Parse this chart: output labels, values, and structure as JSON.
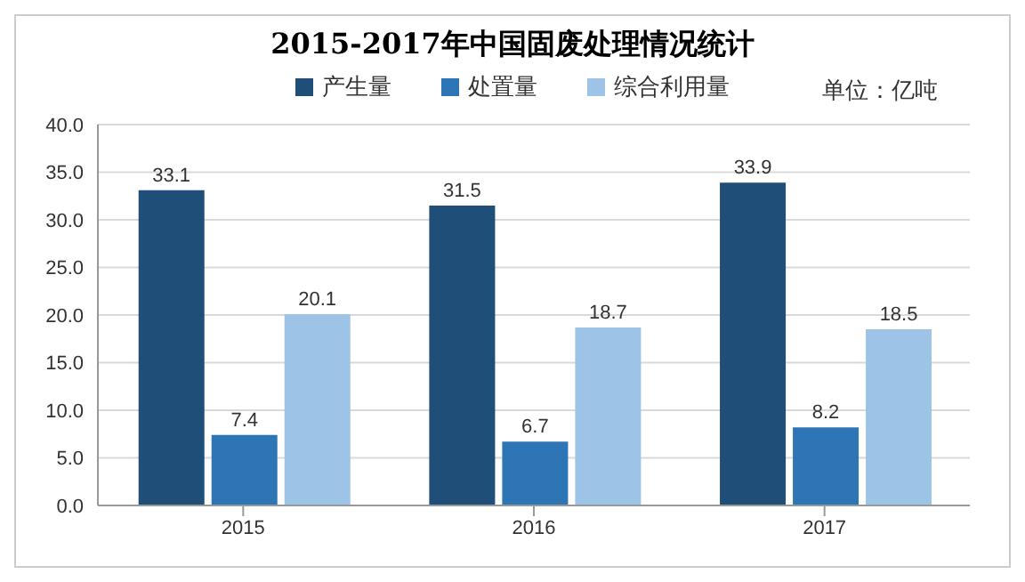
{
  "chart_data": {
    "type": "bar",
    "title": "2015-2017年中国固废处理情况统计",
    "categories": [
      "2015",
      "2016",
      "2017"
    ],
    "series": [
      {
        "name": "产生量",
        "color": "#1f4e79",
        "values": [
          33.1,
          31.5,
          33.9
        ]
      },
      {
        "name": "处置量",
        "color": "#2e75b6",
        "values": [
          7.4,
          6.7,
          8.2
        ]
      },
      {
        "name": "综合利用量",
        "color": "#9dc3e6",
        "values": [
          20.1,
          18.7,
          18.5
        ]
      }
    ],
    "ylim": [
      0,
      40
    ],
    "yticks": [
      {
        "value": 0,
        "label": "0.0"
      },
      {
        "value": 5,
        "label": "5.0"
      },
      {
        "value": 10,
        "label": "10.0"
      },
      {
        "value": 15,
        "label": "15.0"
      },
      {
        "value": 20,
        "label": "20.0"
      },
      {
        "value": 25,
        "label": "25.0"
      },
      {
        "value": 30,
        "label": "30.0"
      },
      {
        "value": 35,
        "label": "35.0"
      },
      {
        "value": 40,
        "label": "40.0"
      }
    ],
    "grid": "y",
    "legend": "top",
    "data_labels": true,
    "annotations": [
      "单位：亿吨"
    ]
  }
}
